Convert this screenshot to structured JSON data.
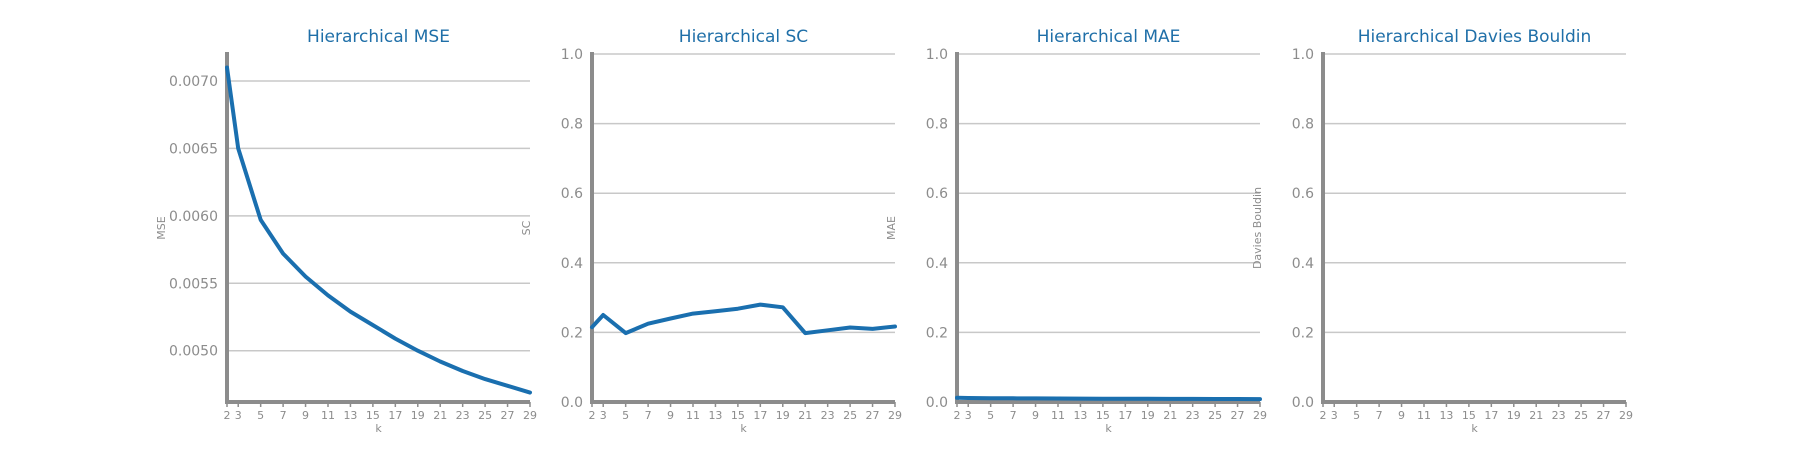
{
  "chart_data": [
    {
      "type": "line",
      "title": "Hierarchical MSE",
      "xlabel": "k",
      "ylabel": "MSE",
      "x": [
        2,
        3,
        5,
        7,
        9,
        11,
        13,
        15,
        17,
        19,
        21,
        23,
        25,
        27,
        29
      ],
      "xticks": [
        "2",
        "3",
        "5",
        "7",
        "9",
        "11",
        "13",
        "15",
        "17",
        "19",
        "21",
        "23",
        "25",
        "27",
        "29"
      ],
      "yticks": [
        0.005,
        0.0055,
        0.006,
        0.0065,
        0.007
      ],
      "ytick_labels": [
        "0.0050",
        "0.0055",
        "0.0060",
        "0.0065",
        "0.0070"
      ],
      "ylim": [
        0.00462,
        0.0072
      ],
      "series": [
        {
          "values": [
            0.0071,
            0.0065,
            0.00597,
            0.00572,
            0.00555,
            0.00541,
            0.00529,
            0.00519,
            0.00509,
            0.005,
            0.00492,
            0.00485,
            0.00479,
            0.00474,
            0.00469
          ]
        }
      ],
      "grid": true,
      "color": "#1a6faf"
    },
    {
      "type": "line",
      "title": "Hierarchical SC",
      "xlabel": "k",
      "ylabel": "SC",
      "x": [
        2,
        3,
        5,
        7,
        9,
        11,
        13,
        15,
        17,
        19,
        21,
        23,
        25,
        27,
        29
      ],
      "xticks": [
        "2",
        "3",
        "5",
        "7",
        "9",
        "11",
        "13",
        "15",
        "17",
        "19",
        "21",
        "23",
        "25",
        "27",
        "29"
      ],
      "yticks": [
        0.0,
        0.2,
        0.4,
        0.6,
        0.8,
        1.0
      ],
      "ytick_labels": [
        "0.0",
        "0.2",
        "0.4",
        "0.6",
        "0.8",
        "1.0"
      ],
      "ylim": [
        0.0,
        1.0
      ],
      "series": [
        {
          "values": [
            0.215,
            0.25,
            0.198,
            0.225,
            0.24,
            0.254,
            0.261,
            0.268,
            0.28,
            0.272,
            0.198,
            0.206,
            0.214,
            0.21,
            0.217
          ]
        }
      ],
      "grid": true,
      "color": "#1a6faf"
    },
    {
      "type": "line",
      "title": "Hierarchical MAE",
      "xlabel": "k",
      "ylabel": "MAE",
      "x": [
        2,
        3,
        5,
        7,
        9,
        11,
        13,
        15,
        17,
        19,
        21,
        23,
        25,
        27,
        29
      ],
      "xticks": [
        "2",
        "3",
        "5",
        "7",
        "9",
        "11",
        "13",
        "15",
        "17",
        "19",
        "21",
        "23",
        "25",
        "27",
        "29"
      ],
      "yticks": [
        0.0,
        0.2,
        0.4,
        0.6,
        0.8,
        1.0
      ],
      "ytick_labels": [
        "0.0",
        "0.2",
        "0.4",
        "0.6",
        "0.8",
        "1.0"
      ],
      "ylim": [
        0.0,
        1.0
      ],
      "series": [
        {
          "values": [
            0.012,
            0.0115,
            0.011,
            0.0106,
            0.0103,
            0.01,
            0.0098,
            0.0096,
            0.0094,
            0.0092,
            0.009,
            0.0088,
            0.0087,
            0.0085,
            0.0084
          ]
        }
      ],
      "grid": true,
      "color": "#1a6faf"
    },
    {
      "type": "line",
      "title": "Hierarchical Davies Bouldin",
      "xlabel": "k",
      "ylabel": "Davies Bouldin",
      "x": [
        2,
        3,
        5,
        7,
        9,
        11,
        13,
        15,
        17,
        19,
        21,
        23,
        25,
        27,
        29
      ],
      "xticks": [
        "2",
        "3",
        "5",
        "7",
        "9",
        "11",
        "13",
        "15",
        "17",
        "19",
        "21",
        "23",
        "25",
        "27",
        "29"
      ],
      "yticks": [
        0.0,
        0.2,
        0.4,
        0.6,
        0.8,
        1.0
      ],
      "ytick_labels": [
        "0.0",
        "0.2",
        "0.4",
        "0.6",
        "0.8",
        "1.0"
      ],
      "ylim": [
        0.0,
        1.0
      ],
      "series": [],
      "grid": true,
      "color": "#1a6faf"
    }
  ]
}
